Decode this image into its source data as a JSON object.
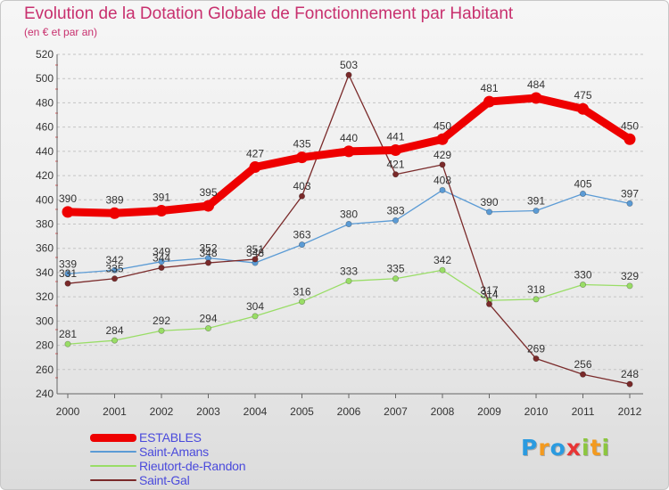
{
  "title": "Evolution de la Dotation Globale de Fonctionnement par Habitant",
  "subtitle": "(en € et par an)",
  "logo": {
    "text": "Proxiti",
    "letters": [
      {
        "ch": "P",
        "color": "#2b9be0"
      },
      {
        "ch": "r",
        "color": "#f39a1f"
      },
      {
        "ch": "o",
        "color": "#2b9be0"
      },
      {
        "ch": "x",
        "color": "#e83535"
      },
      {
        "ch": "i",
        "color": "#8cc63f"
      },
      {
        "ch": "t",
        "color": "#f39a1f"
      },
      {
        "ch": "i",
        "color": "#8cc63f"
      }
    ]
  },
  "chart_data": {
    "type": "line",
    "title": "Evolution de la Dotation Globale de Fonctionnement par Habitant",
    "subtitle": "(en € et par an)",
    "xlabel": "",
    "ylabel": "",
    "x": [
      "2000",
      "2001",
      "2002",
      "2003",
      "2004",
      "2005",
      "2006",
      "2007",
      "2008",
      "2009",
      "2010",
      "2011",
      "2012"
    ],
    "ylim": [
      240,
      520
    ],
    "yticks": [
      240,
      260,
      280,
      300,
      320,
      340,
      360,
      380,
      400,
      420,
      440,
      460,
      480,
      500,
      520
    ],
    "grid": "horizontal-dashed",
    "legend_position": "bottom-left",
    "series": [
      {
        "name": "ESTABLES",
        "color": "#ee0000",
        "emphasis": "thick",
        "values": [
          390,
          389,
          391,
          395,
          427,
          435,
          440,
          441,
          450,
          481,
          484,
          475,
          450
        ]
      },
      {
        "name": "Saint-Amans",
        "color": "#5b9bd5",
        "values": [
          339,
          342,
          349,
          352,
          348,
          363,
          380,
          383,
          408,
          390,
          391,
          405,
          397
        ]
      },
      {
        "name": "Rieutort-de-Randon",
        "color": "#99dd66",
        "values": [
          281,
          284,
          292,
          294,
          304,
          316,
          333,
          335,
          342,
          317,
          318,
          330,
          329
        ]
      },
      {
        "name": "Saint-Gal",
        "color": "#7a2a2a",
        "values": [
          331,
          335,
          344,
          348,
          351,
          403,
          503,
          421,
          429,
          314,
          269,
          256,
          248
        ]
      }
    ]
  }
}
